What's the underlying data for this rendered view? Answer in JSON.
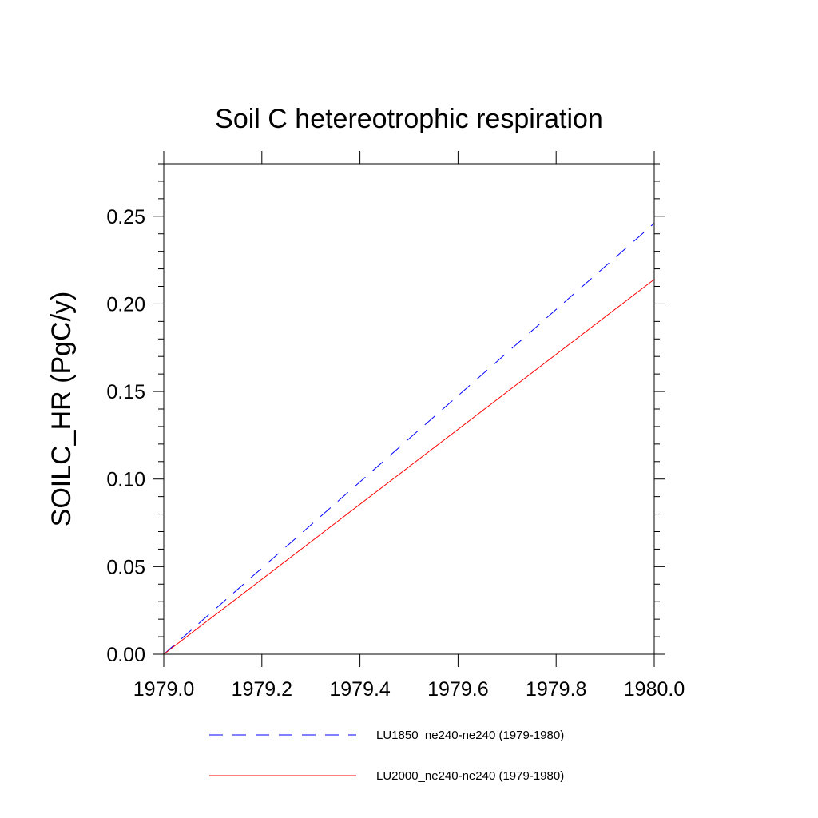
{
  "chart_data": {
    "type": "line",
    "title": "Soil C hetereotrophic respiration",
    "xlabel": "",
    "ylabel": "SOILC_HR  (PgC/y)",
    "xlim": [
      1979.0,
      1980.0
    ],
    "ylim": [
      0.0,
      0.28
    ],
    "xticks": [
      1979.0,
      1979.2,
      1979.4,
      1979.6,
      1979.8,
      1980.0
    ],
    "xtick_labels": [
      "1979.0",
      "1979.2",
      "1979.4",
      "1979.6",
      "1979.8",
      "1980.0"
    ],
    "yticks": [
      0.0,
      0.05,
      0.1,
      0.15,
      0.2,
      0.25
    ],
    "ytick_labels": [
      "0.00",
      "0.05",
      "0.10",
      "0.15",
      "0.20",
      "0.25"
    ],
    "grid": false,
    "legend_position": "bottom",
    "series": [
      {
        "name": "LU1850_ne240-ne240 (1979-1980)",
        "color": "#0000ff",
        "dash": "dashed",
        "x": [
          1979.0,
          1980.0
        ],
        "y": [
          0.0,
          0.246
        ]
      },
      {
        "name": "LU2000_ne240-ne240 (1979-1980)",
        "color": "#ff0000",
        "dash": "solid",
        "x": [
          1979.0,
          1980.0
        ],
        "y": [
          0.0,
          0.214
        ]
      }
    ]
  }
}
